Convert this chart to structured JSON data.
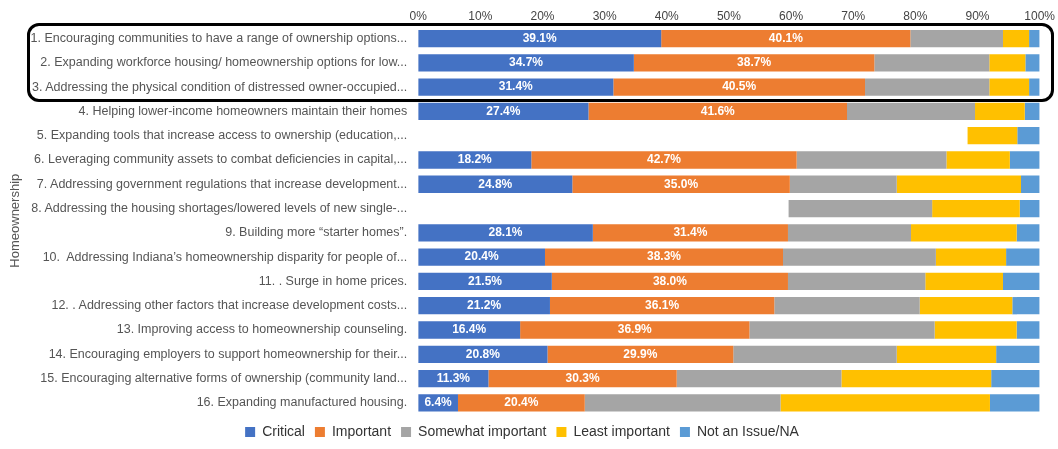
{
  "chart_data": {
    "type": "bar",
    "orientation": "horizontal",
    "stacked": true,
    "ylabel": "Homeownership",
    "legend": "bottom",
    "categories": [
      "1. Encouraging communities to have a range of ownership options...",
      "2. Expanding workforce housing/ homeownership options for low...",
      "3. Addressing the physical condition of distressed owner-occupied...",
      "4. Helping lower-income homeowners maintain their homes",
      "5. Expanding tools that increase access to ownership (education,...",
      "6. Leveraging community assets to combat deficiencies in capital,...",
      "7. Addressing government regulations that increase development...",
      "8. Addressing the housing shortages/lowered levels of new single-...",
      "9. Building more “starter homes”.",
      "10.  Addressing Indiana’s homeownership disparity for people of...",
      "11. . Surge in home prices.",
      "12. . Addressing other factors that increase development costs...",
      "13. Improving access to homeownership counseling.",
      "14. Encouraging employers to support homeownership for their...",
      "15. Encouraging alternative forms of ownership (community land...",
      "16. Expanding manufactured housing."
    ],
    "xlim": [
      0,
      100
    ],
    "xticks": [
      {
        "value": 0,
        "label": "0%"
      },
      {
        "value": 10,
        "label": "10%"
      },
      {
        "value": 20,
        "label": "20%"
      },
      {
        "value": 30,
        "label": "30%"
      },
      {
        "value": 40,
        "label": "40%"
      },
      {
        "value": 50,
        "label": "50%"
      },
      {
        "value": 60,
        "label": "60%"
      },
      {
        "value": 70,
        "label": "70%"
      },
      {
        "value": 80,
        "label": "80%"
      },
      {
        "value": 90,
        "label": "90%"
      },
      {
        "value": 100,
        "label": "100%"
      }
    ],
    "series": [
      {
        "name": "Critical",
        "color": "#4472c4",
        "values": [
          39.1,
          34.7,
          31.4,
          27.4,
          null,
          18.2,
          24.8,
          null,
          28.1,
          20.4,
          21.5,
          21.2,
          16.4,
          20.8,
          11.3,
          6.4
        ],
        "value_labels": [
          "39.1%",
          "34.7%",
          "31.4%",
          "27.4%",
          null,
          "18.2%",
          "24.8%",
          null,
          "28.1%",
          "20.4%",
          "21.5%",
          "21.2%",
          "16.4%",
          "20.8%",
          "11.3%",
          "6.4%"
        ]
      },
      {
        "name": "Important",
        "color": "#ed7d31",
        "values": [
          40.1,
          38.7,
          40.5,
          41.6,
          null,
          42.7,
          35.0,
          null,
          31.4,
          38.3,
          38.0,
          36.1,
          36.9,
          29.9,
          30.3,
          20.4
        ],
        "value_labels": [
          "40.1%",
          "38.7%",
          "40.5%",
          "41.6%",
          null,
          "42.7%",
          "35.0%",
          null,
          "31.4%",
          "38.3%",
          "38.0%",
          "36.1%",
          "36.9%",
          "29.9%",
          "30.3%",
          "20.4%"
        ]
      },
      {
        "name": "Somewhat important",
        "color": "#a5a5a5",
        "values": [
          14.9,
          18.5,
          20.0,
          20.6,
          null,
          24.1,
          17.2,
          23.1,
          19.8,
          24.6,
          22.1,
          23.4,
          29.8,
          26.3,
          26.5,
          31.5
        ],
        "base": [
          79.2,
          73.4,
          71.9,
          69.0,
          null,
          60.9,
          59.8,
          59.6,
          59.5,
          58.7,
          59.5,
          57.3,
          53.3,
          50.7,
          41.6,
          26.8
        ]
      },
      {
        "name": "Least important",
        "color": "#ffc000",
        "values": [
          4.2,
          5.8,
          6.4,
          8.0,
          8.0,
          10.2,
          20.0,
          14.1,
          17.0,
          11.3,
          12.5,
          14.9,
          13.2,
          16.0,
          24.1,
          33.7
        ],
        "base": [
          94.1,
          91.9,
          91.9,
          89.6,
          88.4,
          85.0,
          77.0,
          82.7,
          79.3,
          83.3,
          81.6,
          80.7,
          83.1,
          77.0,
          68.1,
          58.3
        ]
      },
      {
        "name": "Not an Issue/NA",
        "color": "#5b9bd5",
        "values": [
          1.7,
          2.3,
          1.7,
          2.4,
          3.6,
          4.8,
          3.0,
          3.2,
          3.7,
          5.4,
          5.9,
          4.4,
          3.7,
          7.0,
          7.8,
          8.0
        ],
        "base": [
          98.3,
          97.7,
          98.3,
          97.6,
          96.4,
          95.2,
          97.0,
          96.8,
          96.3,
          94.6,
          94.1,
          95.6,
          96.3,
          93.0,
          92.2,
          92.0
        ]
      }
    ]
  }
}
